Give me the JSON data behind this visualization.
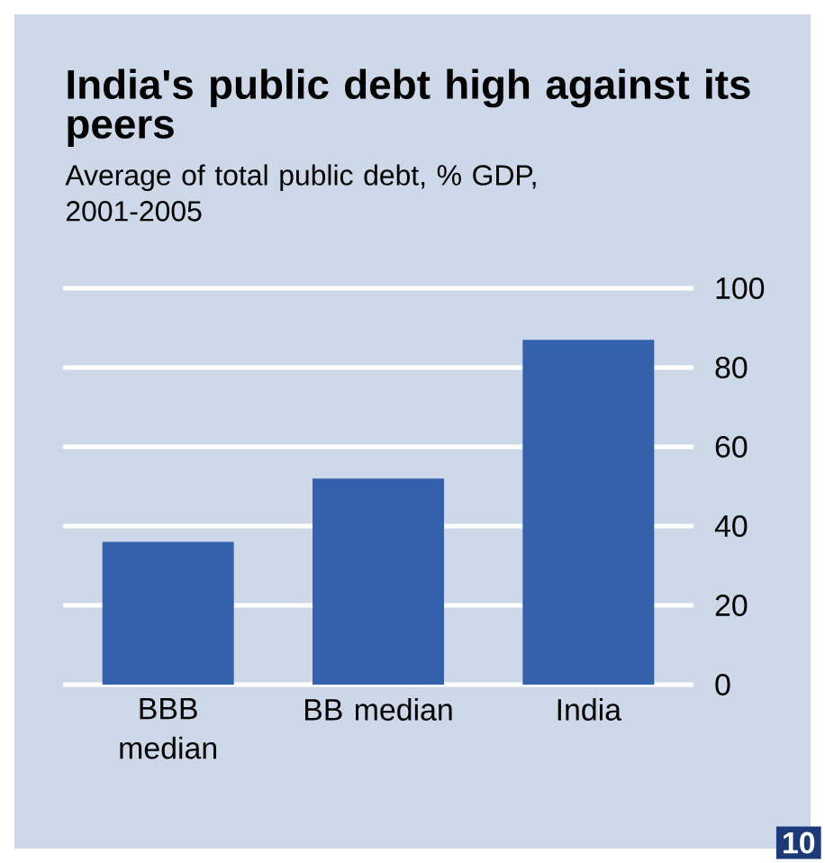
{
  "chart_data": {
    "type": "bar",
    "title": "India's public debt high against its peers",
    "subtitle": "Average of total public debt, % GDP, 2001-2005",
    "categories": [
      "BBB median",
      "BB median",
      "India"
    ],
    "values": [
      36,
      52,
      87
    ],
    "color": "#3361ac",
    "ylim": [
      0,
      100
    ],
    "yticks": [
      0,
      20,
      40,
      60,
      80,
      100
    ],
    "grid": "y",
    "annotations": [
      "10"
    ]
  }
}
